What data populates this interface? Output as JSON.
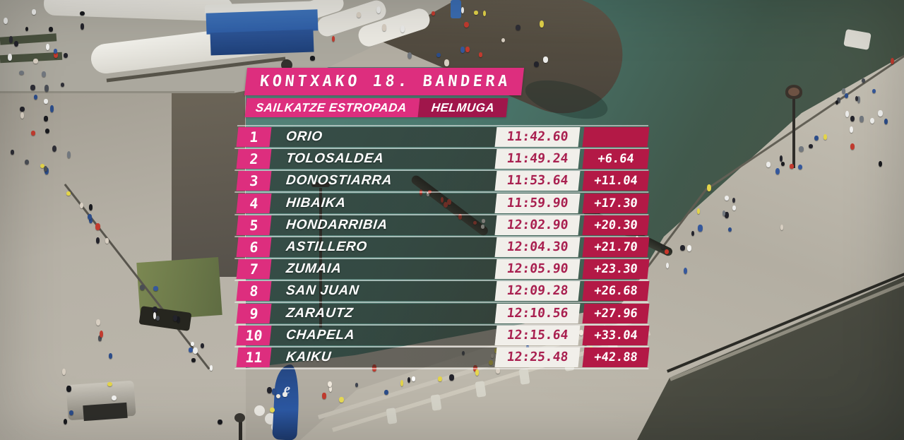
{
  "broadcast": {
    "title": "KONTXAKO 18. BANDERA",
    "race_label": "SAILKATZE ESTROPADA",
    "checkpoint_label": "HELMUGA"
  },
  "results": [
    {
      "rank": "1",
      "team": "ORIO",
      "time": "11:42.60",
      "gap": ""
    },
    {
      "rank": "2",
      "team": "TOLOSALDEA",
      "time": "11:49.24",
      "gap": "+6.64"
    },
    {
      "rank": "3",
      "team": "DONOSTIARRA",
      "time": "11:53.64",
      "gap": "+11.04"
    },
    {
      "rank": "4",
      "team": "HIBAIKA",
      "time": "11:59.90",
      "gap": "+17.30"
    },
    {
      "rank": "5",
      "team": "HONDARRIBIA",
      "time": "12:02.90",
      "gap": "+20.30"
    },
    {
      "rank": "6",
      "team": "ASTILLERO",
      "time": "12:04.30",
      "gap": "+21.70"
    },
    {
      "rank": "7",
      "team": "ZUMAIA",
      "time": "12:05.90",
      "gap": "+23.30"
    },
    {
      "rank": "8",
      "team": "SAN JUAN",
      "time": "12:09.28",
      "gap": "+26.68"
    },
    {
      "rank": "9",
      "team": "ZARAUTZ",
      "time": "12:10.56",
      "gap": "+27.96"
    },
    {
      "rank": "10",
      "team": "CHAPELA",
      "time": "12:15.64",
      "gap": "+33.04"
    },
    {
      "rank": "11",
      "team": "KAIKU",
      "time": "12:25.48",
      "gap": "+42.88"
    }
  ],
  "colors": {
    "pink": "#dd2e7e",
    "dark_pink": "#a0164b",
    "crimson": "#b31946",
    "time_bg": "#f1efea",
    "time_text": "#a92050"
  },
  "chart_data": {
    "type": "table",
    "title": "KONTXAKO 18. BANDERA",
    "subtitle": "SAILKATZE ESTROPADA — HELMUGA",
    "columns": [
      "rank",
      "team",
      "time",
      "gap"
    ],
    "rows": [
      [
        "1",
        "ORIO",
        "11:42.60",
        ""
      ],
      [
        "2",
        "TOLOSALDEA",
        "11:49.24",
        "+6.64"
      ],
      [
        "3",
        "DONOSTIARRA",
        "11:53.64",
        "+11.04"
      ],
      [
        "4",
        "HIBAIKA",
        "11:59.90",
        "+17.30"
      ],
      [
        "5",
        "HONDARRIBIA",
        "12:02.90",
        "+20.30"
      ],
      [
        "6",
        "ASTILLERO",
        "12:04.30",
        "+21.70"
      ],
      [
        "7",
        "ZUMAIA",
        "12:05.90",
        "+23.30"
      ],
      [
        "8",
        "SAN JUAN",
        "12:09.28",
        "+26.68"
      ],
      [
        "9",
        "ZARAUTZ",
        "12:10.56",
        "+27.96"
      ],
      [
        "10",
        "CHAPELA",
        "12:15.64",
        "+33.04"
      ],
      [
        "11",
        "KAIKU",
        "12:25.48",
        "+42.88"
      ]
    ]
  }
}
